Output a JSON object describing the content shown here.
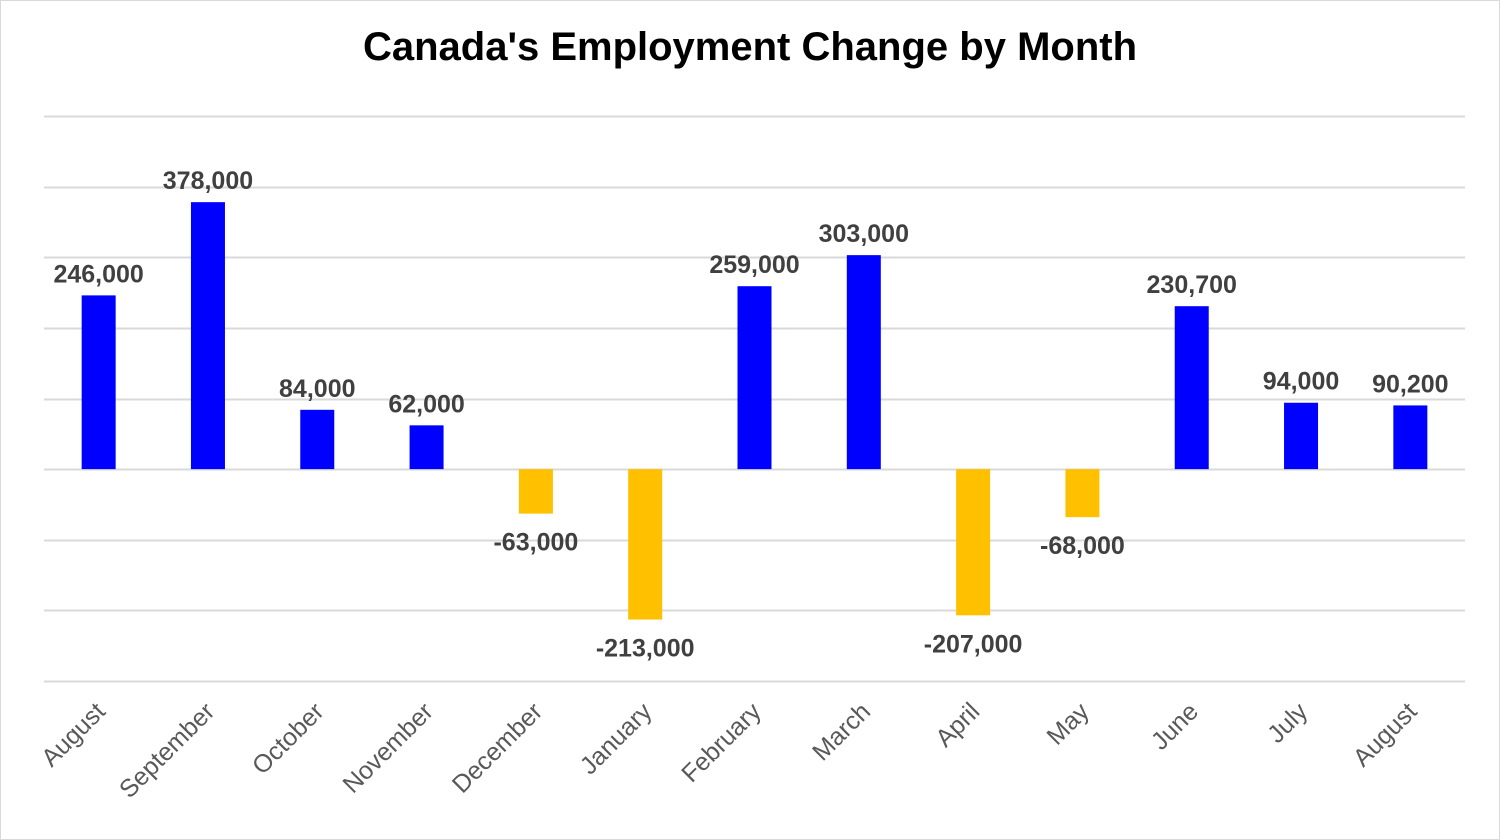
{
  "chart_data": {
    "type": "bar",
    "title": "Canada's Employment Change by Month",
    "xlabel": "",
    "ylabel": "",
    "categories": [
      "August",
      "September",
      "October",
      "November",
      "December",
      "January",
      "February",
      "March",
      "April",
      "May",
      "June",
      "July",
      "August"
    ],
    "values": [
      246000,
      378000,
      84000,
      62000,
      -63000,
      -213000,
      259000,
      303000,
      -207000,
      -68000,
      230700,
      94000,
      90200
    ],
    "data_labels": [
      "246,000",
      "378,000",
      "84,000",
      "62,000",
      "-63,000",
      "-213,000",
      "259,000",
      "303,000",
      "-207,000",
      "-68,000",
      "230,700",
      "94,000",
      "90,200"
    ],
    "ylim": [
      -300000,
      500000
    ],
    "grid_step": 100000,
    "grid": true,
    "legend": "none",
    "y_tick_labels_shown": false,
    "colors": {
      "positive": "#0000ff",
      "negative": "#ffc000",
      "grid": "#d9d9d9",
      "data_label": "#404040",
      "tick_label": "#595959"
    }
  }
}
